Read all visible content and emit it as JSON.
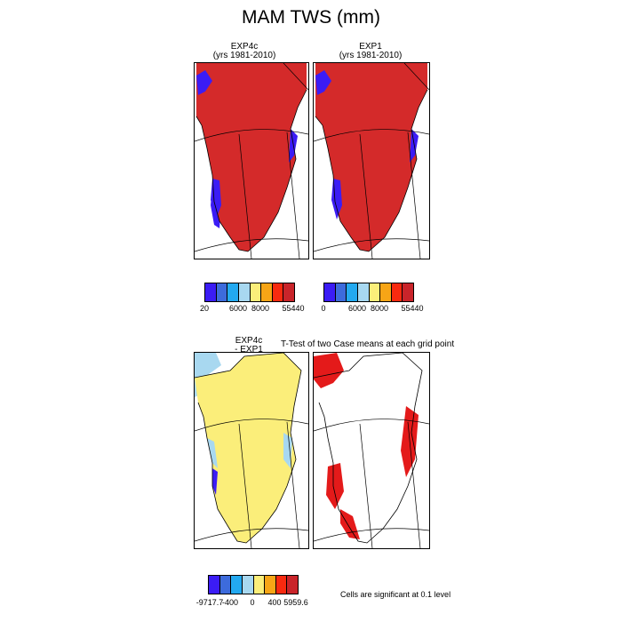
{
  "figure": {
    "title": "MAM TWS (mm)"
  },
  "panels": {
    "p1": {
      "title_line1": "EXP4c",
      "title_line2": "(yrs 1981-2010)"
    },
    "p2": {
      "title_line1": "EXP1",
      "title_line2": "(yrs 1981-2010)"
    },
    "p3": {
      "title_line1": "EXP4c",
      "title_line2": "- EXP1"
    },
    "p4": {
      "title": "T-Test of two Case means at each grid point"
    }
  },
  "colorbars": {
    "top_left": {
      "colors": [
        "#3b1cf5",
        "#3d6bdc",
        "#23a9f0",
        "#a8d8f0",
        "#fbee7a",
        "#f7a516",
        "#f82a0f",
        "#c9242a"
      ],
      "labels": [
        "20",
        "6000",
        "8000",
        "55440"
      ]
    },
    "top_right": {
      "colors": [
        "#3b1cf5",
        "#3d6bdc",
        "#23a9f0",
        "#a8d8f0",
        "#fbee7a",
        "#f7a516",
        "#f82a0f",
        "#c9242a"
      ],
      "labels": [
        "0",
        "6000",
        "8000",
        "55440"
      ]
    },
    "bottom": {
      "colors": [
        "#3b1cf5",
        "#3d6bdc",
        "#23a9f0",
        "#a8d8f0",
        "#fbee7a",
        "#f7a516",
        "#f82a0f",
        "#c9242a"
      ],
      "labels": [
        "-9717.7",
        "-400",
        "0",
        "400",
        "5959.6"
      ]
    }
  },
  "significance_note": "Cells are significant at 0.1 level",
  "map_colors": {
    "tws_land": "#d42a2a",
    "coast_low": "#3b1cf5",
    "diff_land": "#fbee7a",
    "diff_light": "#a8d8f0",
    "significant": "#e41a1a"
  }
}
